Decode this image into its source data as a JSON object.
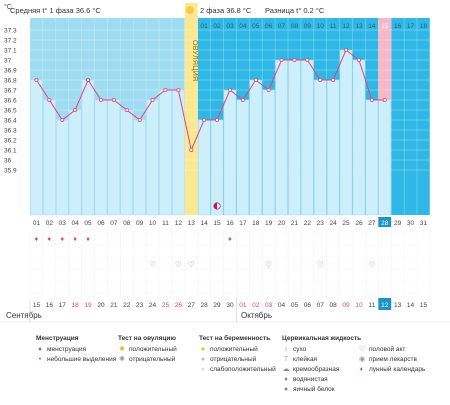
{
  "header": {
    "phase1_label": "Средняя t° 1 фаза 36.6 °C",
    "phase2_label": "2 фаза 36.8 °C",
    "diff_label": "Разница t° 0.2 °C",
    "unit_label": "°C",
    "ovulation_label": "ОВУЛЯЦИЯ"
  },
  "chart_data": {
    "type": "line",
    "cycle_days": [
      "01",
      "02",
      "03",
      "04",
      "05",
      "06",
      "07",
      "08",
      "09",
      "10",
      "11",
      "12",
      "13",
      "14",
      "15",
      "16",
      "17",
      "18",
      "19",
      "20",
      "21",
      "22",
      "23",
      "24",
      "25",
      "26",
      "27",
      "28",
      "29",
      "30",
      "31"
    ],
    "temperatures": [
      36.8,
      36.6,
      36.4,
      36.5,
      36.8,
      36.6,
      36.6,
      36.5,
      36.4,
      36.6,
      36.7,
      36.7,
      36.1,
      36.4,
      36.4,
      36.7,
      36.6,
      36.8,
      36.7,
      37.0,
      37.0,
      37.0,
      36.8,
      36.8,
      37.1,
      37.0,
      36.6,
      36.6
    ],
    "ylim": [
      35.9,
      37.3
    ],
    "yticks": [
      "37.3",
      "37.2",
      "37.1",
      "37",
      "36.9",
      "36.8",
      "36.7",
      "36.6",
      "36.5",
      "36.4",
      "36.3",
      "36.2",
      "36.1",
      "36",
      "35.9"
    ],
    "ovulation_day": 13,
    "phase2_days": [
      "01",
      "02",
      "03",
      "04",
      "05",
      "06",
      "07",
      "08",
      "09",
      "10",
      "11",
      "12",
      "13",
      "14",
      "15",
      "16",
      "17",
      "18"
    ],
    "highlight_day": 28,
    "today_day": 28,
    "phase1_average": 36.6,
    "phase2_average": 36.8,
    "colors": {
      "phase1_bg": "#9fdcf2",
      "phase2_bg": "#2fb8e6",
      "bar_fill": "#cdeefb",
      "bar_stroke": "#9fd4ea",
      "line": "#e0457b",
      "ovulation": "#fbe890",
      "highlight": "#f6b7c8",
      "today": "#1e93c8"
    }
  },
  "dates": {
    "values": [
      "15",
      "16",
      "17",
      "18",
      "19",
      "20",
      "21",
      "22",
      "23",
      "24",
      "25",
      "26",
      "27",
      "28",
      "29",
      "30",
      "01",
      "02",
      "03",
      "04",
      "05",
      "06",
      "07",
      "08",
      "09",
      "10",
      "11",
      "12",
      "13",
      "14",
      "15"
    ],
    "red_days": [
      "18",
      "19",
      "25",
      "26",
      "01",
      "02",
      "03",
      "09",
      "10"
    ],
    "month1": "Сентябрь",
    "month2": "Октябрь"
  },
  "markers": {
    "menstruation_days": [
      1,
      2,
      3,
      4,
      5,
      16
    ],
    "sex_days": [
      10,
      12,
      13,
      19,
      23,
      27
    ],
    "pill_day": 15
  },
  "legend": {
    "menstruation": {
      "title": "Менструация",
      "items": [
        "менструация",
        "небольшие выделения"
      ]
    },
    "ovulation_test": {
      "title": "Тест на овуляцию",
      "items": [
        "положительный",
        "отрицательный"
      ]
    },
    "pregnancy_test": {
      "title": "Тест на беременность",
      "items": [
        "положительный",
        "отрицательный",
        "слабоположительный"
      ]
    },
    "cervical": {
      "title": "Цервикальная жидкость",
      "items": [
        "сухо",
        "клейкая",
        "кремообразная",
        "водянистая",
        "яичный белок"
      ]
    },
    "other": {
      "items": [
        "половой акт",
        "прием лекарств",
        "лунный календарь"
      ]
    }
  }
}
